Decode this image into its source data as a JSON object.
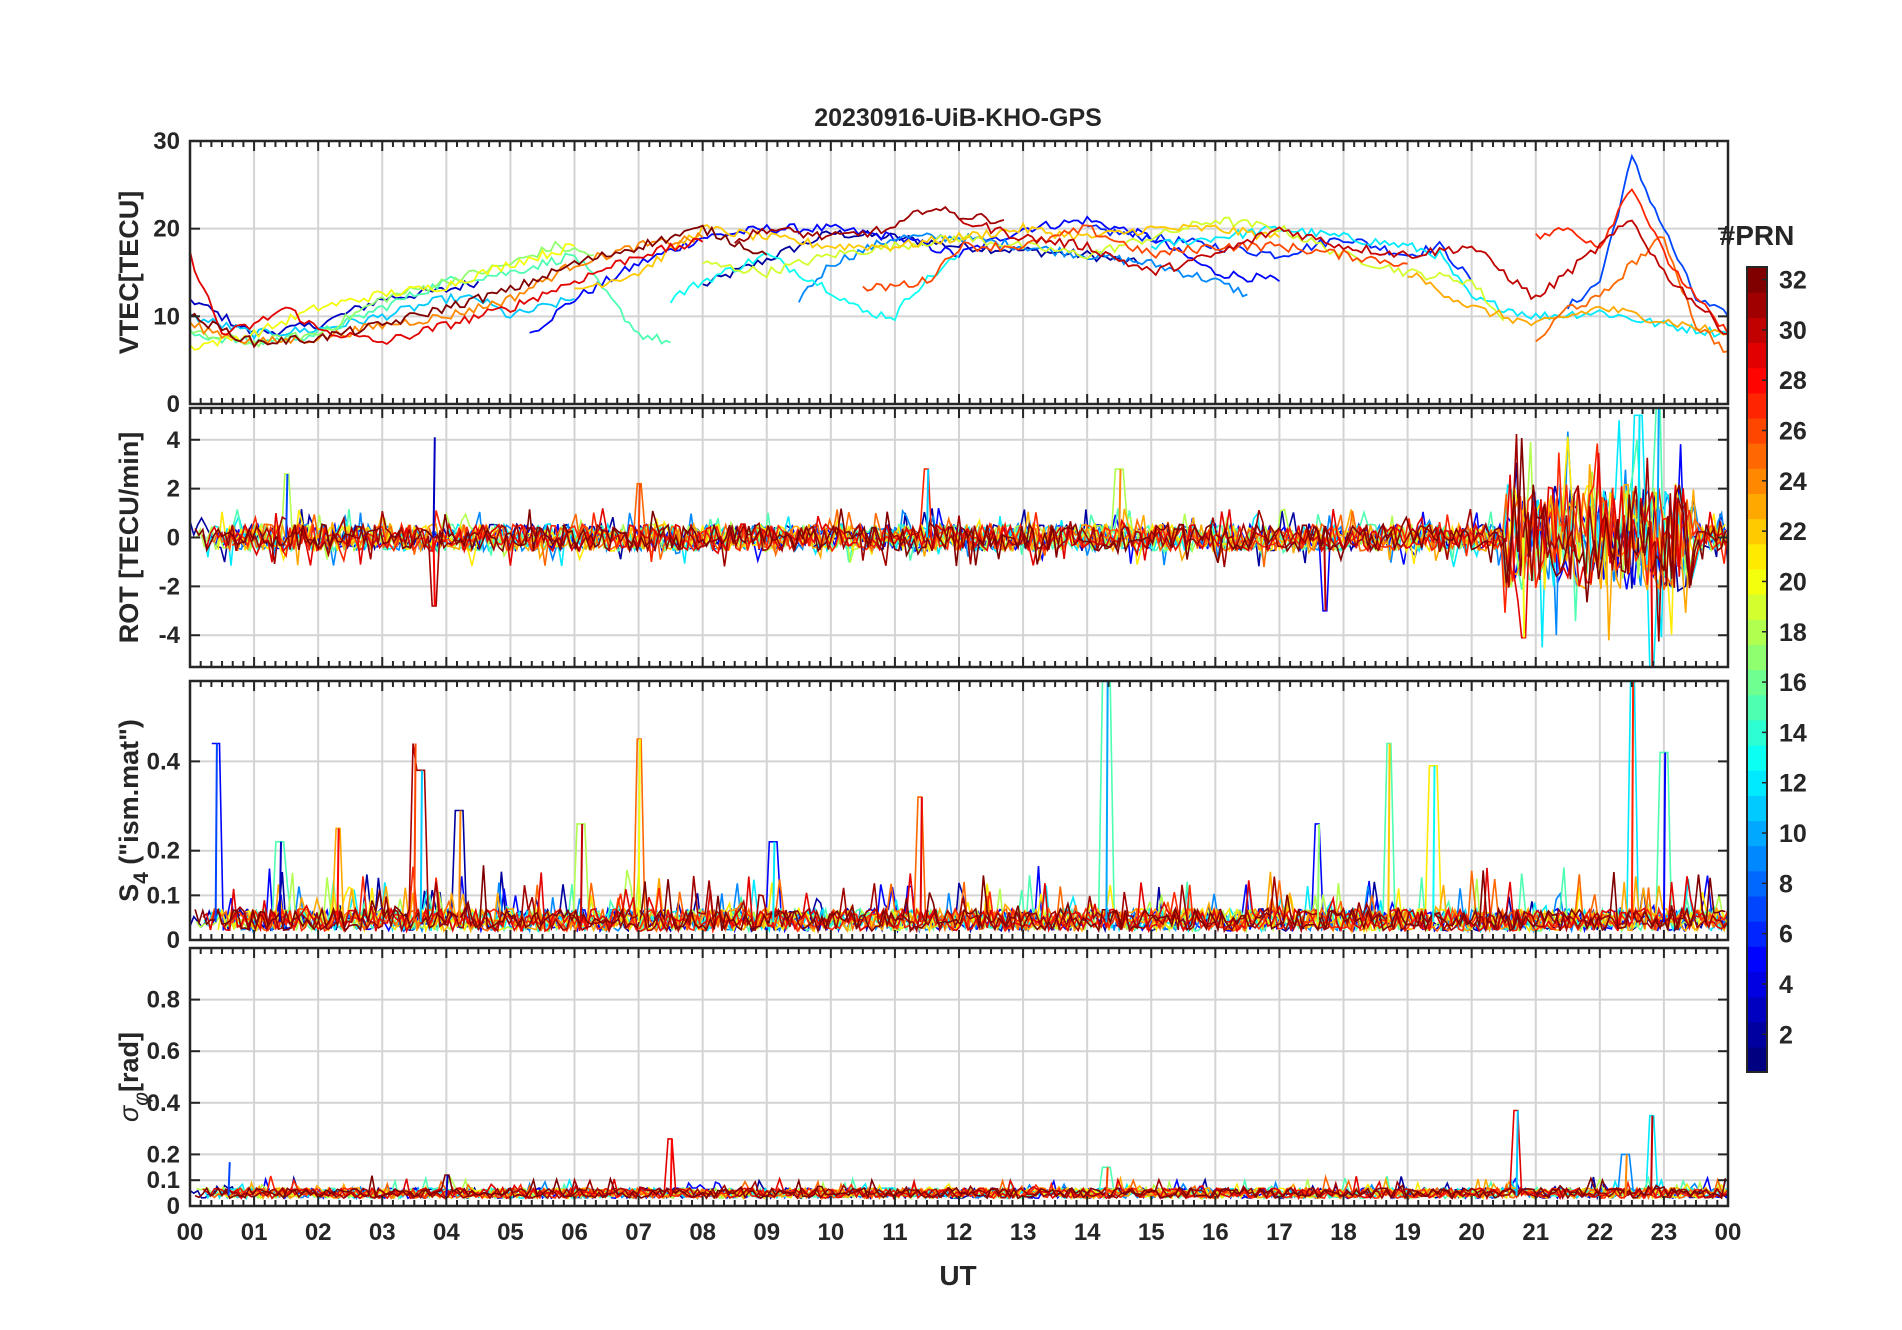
{
  "figure": {
    "title": "20230916-UiB-KHO-GPS",
    "xlabel": "UT",
    "x_tick_labels": [
      "00",
      "01",
      "02",
      "03",
      "04",
      "05",
      "06",
      "07",
      "08",
      "09",
      "10",
      "11",
      "12",
      "13",
      "14",
      "15",
      "16",
      "17",
      "18",
      "19",
      "20",
      "21",
      "22",
      "23",
      "00"
    ]
  },
  "colorbar": {
    "title": "#PRN",
    "range": [
      1,
      32
    ],
    "tick_values": [
      2,
      4,
      6,
      8,
      10,
      12,
      14,
      16,
      18,
      20,
      22,
      24,
      26,
      28,
      30,
      32
    ],
    "tick_labels": [
      "2",
      "4",
      "6",
      "8",
      "10",
      "12",
      "14",
      "16",
      "18",
      "20",
      "22",
      "24",
      "26",
      "28",
      "30",
      "32"
    ],
    "colormap": "jet"
  },
  "chart_data": [
    {
      "type": "line",
      "panel": "vtec",
      "ylabel": "VTEC[TECU]",
      "xlim": [
        0,
        24
      ],
      "ylim": [
        0,
        30
      ],
      "y_tick_values": [
        0,
        10,
        20,
        30
      ],
      "y_tick_labels": [
        "0",
        "10",
        "20",
        "30"
      ],
      "series": [
        {
          "name": "PRN 2",
          "prn": 2,
          "x": [
            8.0,
            9.0,
            10.0,
            11.0,
            12.0,
            13.0,
            14.0,
            14.8
          ],
          "y": [
            13.5,
            16.5,
            19.5,
            19.0,
            18.0,
            17.5,
            17.0,
            16.0
          ]
        },
        {
          "name": "PRN 3",
          "prn": 3,
          "x": [
            0.0,
            0.5,
            1.0,
            2.0,
            3.0,
            4.0,
            4.5
          ],
          "y": [
            12.0,
            10.0,
            8.0,
            9.0,
            12.0,
            13.0,
            14.0
          ]
        },
        {
          "name": "PRN 5",
          "prn": 5,
          "x": [
            5.3,
            6.0,
            7.0,
            8.0,
            9.0,
            10.0,
            11.0,
            12.0,
            13.0,
            14.0,
            15.0,
            16.0,
            17.0
          ],
          "y": [
            8.0,
            12.0,
            16.0,
            19.0,
            20.0,
            20.0,
            19.0,
            17.0,
            20.0,
            21.0,
            19.0,
            15.0,
            14.0
          ]
        },
        {
          "name": "PRN 6",
          "prn": 6,
          "x": [
            14.0,
            15.0,
            16.0,
            17.0,
            18.0,
            19.0,
            19.5,
            20.0
          ],
          "y": [
            20.0,
            19.0,
            18.0,
            17.0,
            19.0,
            17.0,
            18.0,
            14.0
          ]
        },
        {
          "name": "PRN 7",
          "prn": 7,
          "x": [
            21.5,
            22.0,
            22.5,
            23.0,
            23.5,
            24.0
          ],
          "y": [
            11.0,
            14.0,
            28.0,
            20.0,
            12.0,
            10.0
          ]
        },
        {
          "name": "PRN 9",
          "prn": 9,
          "x": [
            9.5,
            10.0,
            11.0,
            12.0,
            13.0,
            14.0,
            15.0,
            16.0,
            16.5
          ],
          "y": [
            12.0,
            16.0,
            19.0,
            19.0,
            18.0,
            17.0,
            16.0,
            14.0,
            12.5
          ]
        },
        {
          "name": "PRN 11",
          "prn": 11,
          "x": [
            0.0,
            1.0,
            2.0,
            3.0,
            4.0,
            4.5,
            5.0,
            6.0
          ],
          "y": [
            10.0,
            8.0,
            8.5,
            10.0,
            12.0,
            12.0,
            10.0,
            12.0
          ]
        },
        {
          "name": "PRN 12",
          "prn": 12,
          "x": [
            15.0,
            16.0,
            17.0,
            18.0,
            19.0,
            19.5,
            20.0,
            21.0,
            22.0,
            23.0,
            24.0
          ],
          "y": [
            18.0,
            19.0,
            20.0,
            19.0,
            18.0,
            17.0,
            12.0,
            10.0,
            10.5,
            9.0,
            8.0
          ]
        },
        {
          "name": "PRN 13",
          "prn": 13,
          "x": [
            7.5,
            8.0,
            9.0,
            10.0,
            10.5,
            11.0,
            11.3,
            12.0
          ],
          "y": [
            12.0,
            14.0,
            17.0,
            13.0,
            10.5,
            10.0,
            13.0,
            17.0
          ]
        },
        {
          "name": "PRN 15",
          "prn": 15,
          "x": [
            0.0,
            1.0,
            2.0,
            3.0,
            4.0,
            5.0,
            6.0,
            7.0,
            7.5
          ],
          "y": [
            8.0,
            7.0,
            8.0,
            11.0,
            14.0,
            15.0,
            17.0,
            8.0,
            7.0
          ]
        },
        {
          "name": "PRN 17",
          "prn": 17,
          "x": [
            0.0,
            1.0,
            2.0,
            3.0,
            4.0,
            5.0,
            5.7,
            6.3
          ],
          "y": [
            8.0,
            7.0,
            8.0,
            12.0,
            14.0,
            16.0,
            18.0,
            17.0
          ]
        },
        {
          "name": "PRN 19",
          "prn": 19,
          "x": [
            8.0,
            9.0,
            10.0,
            11.0,
            12.0,
            13.0,
            14.0,
            15.0,
            16.0,
            17.0,
            18.0,
            19.0,
            20.0,
            20.5
          ],
          "y": [
            16.0,
            15.0,
            17.0,
            18.0,
            19.0,
            18.0,
            17.0,
            19.0,
            21.0,
            20.0,
            17.0,
            15.0,
            14.0,
            9.5
          ]
        },
        {
          "name": "PRN 20",
          "prn": 20,
          "x": [
            0.0,
            1.0,
            2.0,
            3.0,
            4.0,
            5.0,
            6.0
          ],
          "y": [
            6.5,
            8.0,
            11.0,
            12.5,
            13.5,
            16.0,
            18.0
          ]
        },
        {
          "name": "PRN 22",
          "prn": 22,
          "x": [
            6.0,
            7.0,
            8.0,
            9.0,
            10.0,
            11.0,
            12.0,
            13.0,
            14.0,
            15.0,
            16.0,
            17.0
          ],
          "y": [
            13.0,
            15.0,
            20.0,
            19.0,
            18.0,
            18.0,
            19.0,
            20.0,
            19.0,
            20.0,
            20.0,
            19.0
          ]
        },
        {
          "name": "PRN 23",
          "prn": 23,
          "x": [
            19.0,
            20.0,
            21.0,
            22.0,
            23.0,
            24.0
          ],
          "y": [
            15.0,
            11.0,
            9.0,
            11.0,
            9.5,
            8.0
          ]
        },
        {
          "name": "PRN 24",
          "prn": 24,
          "x": [
            0.0,
            1.0,
            2.0,
            3.0,
            4.0,
            5.0,
            6.0,
            7.0,
            8.0
          ],
          "y": [
            9.0,
            7.0,
            7.5,
            9.0,
            10.0,
            12.0,
            16.0,
            18.0,
            19.0
          ]
        },
        {
          "name": "PRN 25",
          "prn": 25,
          "x": [
            21.0,
            21.5,
            22.0,
            22.5,
            23.0,
            23.5,
            24.0
          ],
          "y": [
            7.0,
            11.0,
            12.0,
            16.0,
            19.0,
            9.0,
            6.0
          ]
        },
        {
          "name": "PRN 26",
          "prn": 26,
          "x": [
            10.5,
            11.0,
            11.5,
            12.0,
            13.0,
            14.0,
            15.0,
            16.0,
            17.0,
            18.0,
            19.0
          ],
          "y": [
            13.0,
            13.5,
            14.0,
            18.0,
            18.0,
            20.0,
            17.0,
            18.0,
            18.0,
            17.0,
            16.0
          ]
        },
        {
          "name": "PRN 27",
          "prn": 27,
          "x": [
            21.0,
            21.5,
            22.0,
            22.5,
            23.0,
            23.5,
            24.0
          ],
          "y": [
            19.0,
            20.0,
            18.0,
            25.0,
            17.0,
            12.0,
            8.0
          ]
        },
        {
          "name": "PRN 29",
          "prn": 29,
          "x": [
            0.0,
            0.5,
            1.0,
            1.5,
            2.0,
            3.0,
            4.0,
            5.0,
            6.0,
            7.0,
            8.0
          ],
          "y": [
            17.0,
            8.0,
            9.0,
            11.0,
            8.5,
            7.0,
            9.0,
            11.0,
            14.0,
            17.0,
            18.5
          ]
        },
        {
          "name": "PRN 30",
          "prn": 30,
          "x": [
            12.0,
            13.0,
            14.0,
            15.0,
            16.0,
            17.0,
            18.0,
            19.0,
            20.0,
            21.0,
            22.0,
            22.5,
            23.0,
            24.0
          ],
          "y": [
            21.0,
            19.0,
            18.0,
            15.0,
            17.0,
            20.0,
            18.0,
            17.0,
            18.0,
            12.0,
            18.0,
            21.0,
            15.0,
            8.0
          ]
        },
        {
          "name": "PRN 31",
          "prn": 31,
          "x": [
            8.5,
            9.0,
            10.0,
            11.0,
            11.5,
            12.0,
            12.7
          ],
          "y": [
            18.5,
            20.0,
            19.0,
            20.0,
            22.5,
            21.5,
            21.0
          ]
        },
        {
          "name": "PRN 32",
          "prn": 32,
          "x": [
            0.0,
            1.0,
            2.0,
            3.0,
            4.0,
            5.0,
            6.0,
            7.0,
            8.0,
            9.0
          ],
          "y": [
            10.0,
            7.0,
            7.5,
            9.0,
            11.0,
            13.0,
            16.0,
            18.0,
            20.0,
            17.0
          ]
        }
      ]
    },
    {
      "type": "line",
      "panel": "rot",
      "ylabel": "ROT [TECU/min]",
      "xlim": [
        0,
        24
      ],
      "ylim": [
        -5.3,
        5.3
      ],
      "y_tick_values": [
        -4,
        -2,
        0,
        2,
        4
      ],
      "y_tick_labels": [
        "-4",
        "-2",
        "0",
        "2",
        "4"
      ],
      "summary": "Noise band of roughly ±0.6 TECU/min for most of the day; isolated excursions near 03.8 UT (4.1 / -2.8), 07.0 UT (2.2), 14.5 UT (2.8); strong fluctuations between 20.5 and 23.5 UT reaching about +5.3 / -5.3 near 22.8 UT.",
      "notable_values": [
        {
          "x": 1.5,
          "y": 2.6
        },
        {
          "x": 3.8,
          "y": 4.1
        },
        {
          "x": 3.8,
          "y": -2.8
        },
        {
          "x": 7.0,
          "y": 2.2
        },
        {
          "x": 11.5,
          "y": 2.8
        },
        {
          "x": 14.5,
          "y": 2.8
        },
        {
          "x": 17.7,
          "y": -3.0
        },
        {
          "x": 20.8,
          "y": -4.1
        },
        {
          "x": 22.6,
          "y": 5.0
        },
        {
          "x": 22.8,
          "y": -5.3
        },
        {
          "x": 22.9,
          "y": 5.3
        }
      ]
    },
    {
      "type": "line",
      "panel": "s4",
      "ylabel": "S4 (\"ism.mat\")",
      "ylabel_main": "S",
      "ylabel_subscript": "4",
      "ylabel_suffix": " (\"ism.mat\")",
      "xlim": [
        0,
        24
      ],
      "ylim": [
        0,
        0.58
      ],
      "y_tick_values": [
        0,
        0.1,
        0.2,
        0.4
      ],
      "y_tick_labels": [
        "0",
        "0.1",
        "0.2",
        "0.4"
      ],
      "summary": "Background S4 around 0.02–0.08; spikes near 00.4 (0.44), 03.5 (0.44), 07.0 (0.45), 14.3 (0.58), 18.7 (0.44), 19.4 (0.39) and 22.5 UT (0.58).",
      "notable_values": [
        {
          "x": 0.4,
          "y": 0.44
        },
        {
          "x": 1.4,
          "y": 0.22
        },
        {
          "x": 2.3,
          "y": 0.25
        },
        {
          "x": 3.5,
          "y": 0.44
        },
        {
          "x": 3.6,
          "y": 0.38
        },
        {
          "x": 4.2,
          "y": 0.29
        },
        {
          "x": 6.1,
          "y": 0.26
        },
        {
          "x": 7.0,
          "y": 0.45
        },
        {
          "x": 9.1,
          "y": 0.22
        },
        {
          "x": 11.4,
          "y": 0.32
        },
        {
          "x": 14.3,
          "y": 0.58
        },
        {
          "x": 17.6,
          "y": 0.26
        },
        {
          "x": 18.7,
          "y": 0.44
        },
        {
          "x": 19.4,
          "y": 0.39
        },
        {
          "x": 22.5,
          "y": 0.58
        },
        {
          "x": 23.0,
          "y": 0.42
        }
      ]
    },
    {
      "type": "line",
      "panel": "sigma_phi",
      "ylabel": "σφ[rad]",
      "ylabel_main": "σ",
      "ylabel_subscript": "φ",
      "ylabel_suffix": "[rad]",
      "xlim": [
        0,
        24
      ],
      "ylim": [
        0,
        1
      ],
      "y_tick_values": [
        0,
        0.1,
        0.2,
        0.4,
        0.6,
        0.8
      ],
      "y_tick_labels": [
        "0",
        "0.1",
        "0.2",
        "0.4",
        "0.6",
        "0.8"
      ],
      "summary": "Phase scintillation mostly 0.03–0.08 rad; peaks near 00.6 UT (0.17), 07.5 UT (0.26), 20.7 UT (0.37) and 22.8 UT (0.35).",
      "notable_values": [
        {
          "x": 0.6,
          "y": 0.17
        },
        {
          "x": 4.0,
          "y": 0.12
        },
        {
          "x": 7.5,
          "y": 0.26
        },
        {
          "x": 14.3,
          "y": 0.15
        },
        {
          "x": 20.7,
          "y": 0.37
        },
        {
          "x": 22.4,
          "y": 0.2
        },
        {
          "x": 22.8,
          "y": 0.35
        }
      ]
    }
  ]
}
